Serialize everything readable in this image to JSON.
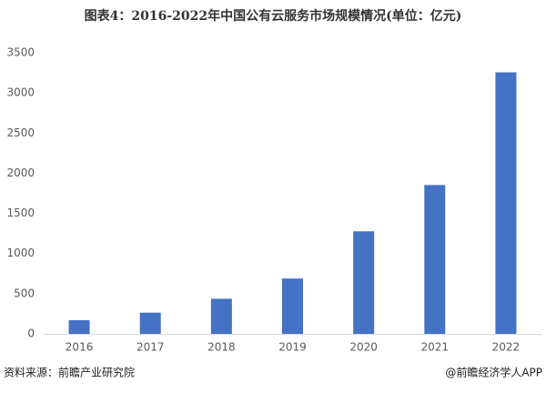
{
  "chart_data": {
    "type": "bar",
    "title": "图表4：2016-2022年中国公有云服务市场规模情况(单位：亿元)",
    "categories": [
      "2016",
      "2017",
      "2018",
      "2019",
      "2020",
      "2021",
      "2022"
    ],
    "values": [
      170,
      264,
      437,
      689,
      1277,
      1853,
      3256
    ],
    "color": "#4472c4",
    "ylim": [
      0,
      3500
    ],
    "yticks": [
      0,
      500,
      1000,
      1500,
      2000,
      2500,
      3000,
      3500
    ],
    "grid": false,
    "source": "资料来源：前瞻产业研究院",
    "credit": "@前瞻经济学人APP"
  }
}
